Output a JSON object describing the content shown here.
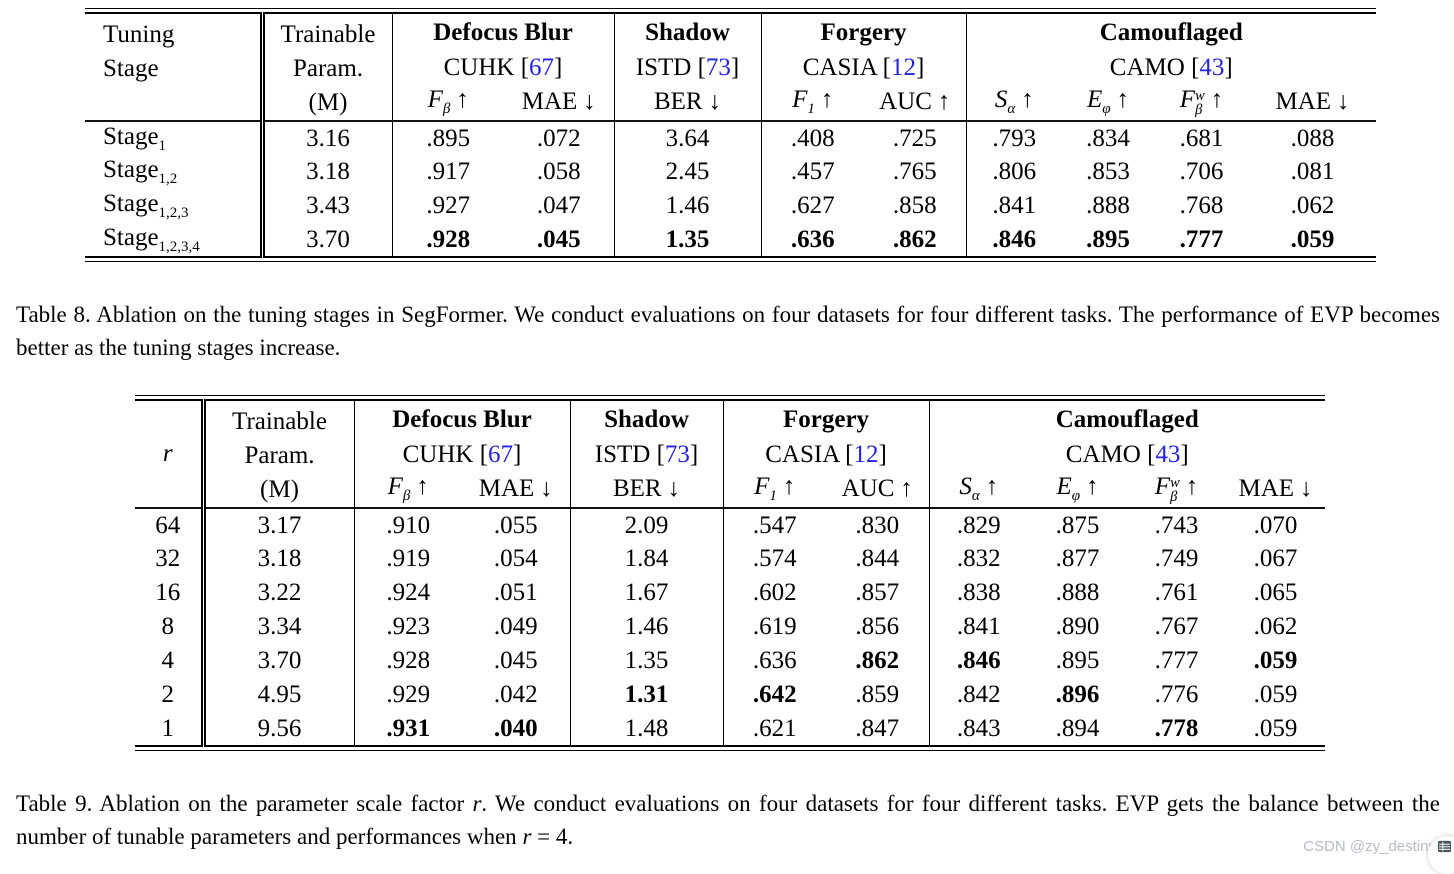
{
  "colors": {
    "cite_blue": "#2222e0",
    "watermark_text": "#b7bdc4",
    "watermark_icon": "#47525c",
    "rule": "#000000"
  },
  "shared_groups": [
    {
      "title": "Defocus Blur",
      "dataset": "CUHK",
      "cite": {
        "open": "[",
        "num": "67",
        "close": "]"
      },
      "metrics": [
        {
          "base": "F",
          "sub": "β",
          "it": true,
          "arrow": "↑"
        },
        {
          "base": "MAE",
          "arrow": "↓"
        }
      ]
    },
    {
      "title": "Shadow",
      "dataset": "ISTD",
      "cite": {
        "open": "[",
        "num": "73",
        "close": "]"
      },
      "metrics": [
        {
          "base": "BER",
          "arrow": "↓"
        }
      ]
    },
    {
      "title": "Forgery",
      "dataset": "CASIA",
      "cite": {
        "open": "[",
        "num": "12",
        "close": "]"
      },
      "metrics": [
        {
          "base": "F",
          "sub": "1",
          "it": true,
          "arrow": "↑"
        },
        {
          "base": "AUC",
          "arrow": "↑"
        }
      ]
    },
    {
      "title": "Camouflaged",
      "dataset": "CAMO",
      "cite": {
        "open": "[",
        "num": "43",
        "close": "]"
      },
      "metrics": [
        {
          "base": "S",
          "sub": "α",
          "it": true,
          "arrow": "↑"
        },
        {
          "base": "E",
          "sub": "φ",
          "it": true,
          "arrow": "↑"
        },
        {
          "base": "F",
          "sub": "β",
          "sup": "w",
          "it": true,
          "arrow": "↑"
        },
        {
          "base": "MAE",
          "arrow": "↓"
        }
      ]
    }
  ],
  "table8": {
    "col0_header_lines": [
      "Tuning",
      "Stage"
    ],
    "param_header_lines": [
      "Trainable",
      "Param.",
      "(M)"
    ],
    "rows": [
      {
        "label": {
          "base": "Stage",
          "sub": "1"
        },
        "values": [
          "3.16",
          ".895",
          ".072",
          "3.64",
          ".408",
          ".725",
          ".793",
          ".834",
          ".681",
          ".088"
        ],
        "bold": []
      },
      {
        "label": {
          "base": "Stage",
          "sub": "1,2"
        },
        "values": [
          "3.18",
          ".917",
          ".058",
          "2.45",
          ".457",
          ".765",
          ".806",
          ".853",
          ".706",
          ".081"
        ],
        "bold": []
      },
      {
        "label": {
          "base": "Stage",
          "sub": "1,2,3"
        },
        "values": [
          "3.43",
          ".927",
          ".047",
          "1.46",
          ".627",
          ".858",
          ".841",
          ".888",
          ".768",
          ".062"
        ],
        "bold": []
      },
      {
        "label": {
          "base": "Stage",
          "sub": "1,2,3,4"
        },
        "values": [
          "3.70",
          ".928",
          ".045",
          "1.35",
          ".636",
          ".862",
          ".846",
          ".895",
          ".777",
          ".059"
        ],
        "bold": [
          1,
          2,
          3,
          4,
          5,
          6,
          7,
          8,
          9
        ]
      }
    ],
    "caption_segments": [
      {
        "t": "Table 8. Ablation on the tuning stages in SegFormer. We conduct evaluations on four datasets for four different tasks. The performance of EVP becomes better as the tuning stages increase."
      }
    ]
  },
  "table9": {
    "col0_header_math": {
      "base": "r",
      "it": true
    },
    "param_header_lines": [
      "Trainable",
      "Param.",
      "(M)"
    ],
    "rows": [
      {
        "label": {
          "base": "64"
        },
        "values": [
          "3.17",
          ".910",
          ".055",
          "2.09",
          ".547",
          ".830",
          ".829",
          ".875",
          ".743",
          ".070"
        ],
        "bold": []
      },
      {
        "label": {
          "base": "32"
        },
        "values": [
          "3.18",
          ".919",
          ".054",
          "1.84",
          ".574",
          ".844",
          ".832",
          ".877",
          ".749",
          ".067"
        ],
        "bold": []
      },
      {
        "label": {
          "base": "16"
        },
        "values": [
          "3.22",
          ".924",
          ".051",
          "1.67",
          ".602",
          ".857",
          ".838",
          ".888",
          ".761",
          ".065"
        ],
        "bold": []
      },
      {
        "label": {
          "base": "8"
        },
        "values": [
          "3.34",
          ".923",
          ".049",
          "1.46",
          ".619",
          ".856",
          ".841",
          ".890",
          ".767",
          ".062"
        ],
        "bold": []
      },
      {
        "label": {
          "base": "4"
        },
        "values": [
          "3.70",
          ".928",
          ".045",
          "1.35",
          ".636",
          ".862",
          ".846",
          ".895",
          ".777",
          ".059"
        ],
        "bold": [
          5,
          6,
          9
        ]
      },
      {
        "label": {
          "base": "2"
        },
        "values": [
          "4.95",
          ".929",
          ".042",
          "1.31",
          ".642",
          ".859",
          ".842",
          ".896",
          ".776",
          ".059"
        ],
        "bold": [
          3,
          4,
          7
        ]
      },
      {
        "label": {
          "base": "1"
        },
        "values": [
          "9.56",
          ".931",
          ".040",
          "1.48",
          ".621",
          ".847",
          ".843",
          ".894",
          ".778",
          ".059"
        ],
        "bold": [
          1,
          2,
          8
        ]
      }
    ],
    "caption_segments": [
      {
        "t": "Table 9. Ablation on the parameter scale factor "
      },
      {
        "t": "r",
        "i": true
      },
      {
        "t": ". We conduct evaluations on four datasets for four different tasks. EVP gets the balance between the number of tunable parameters and performances when "
      },
      {
        "t": "r",
        "i": true
      },
      {
        "t": " = 4."
      }
    ]
  },
  "watermark": {
    "text": "CSDN @zy_destiny",
    "icon": "table-grid-icon"
  }
}
